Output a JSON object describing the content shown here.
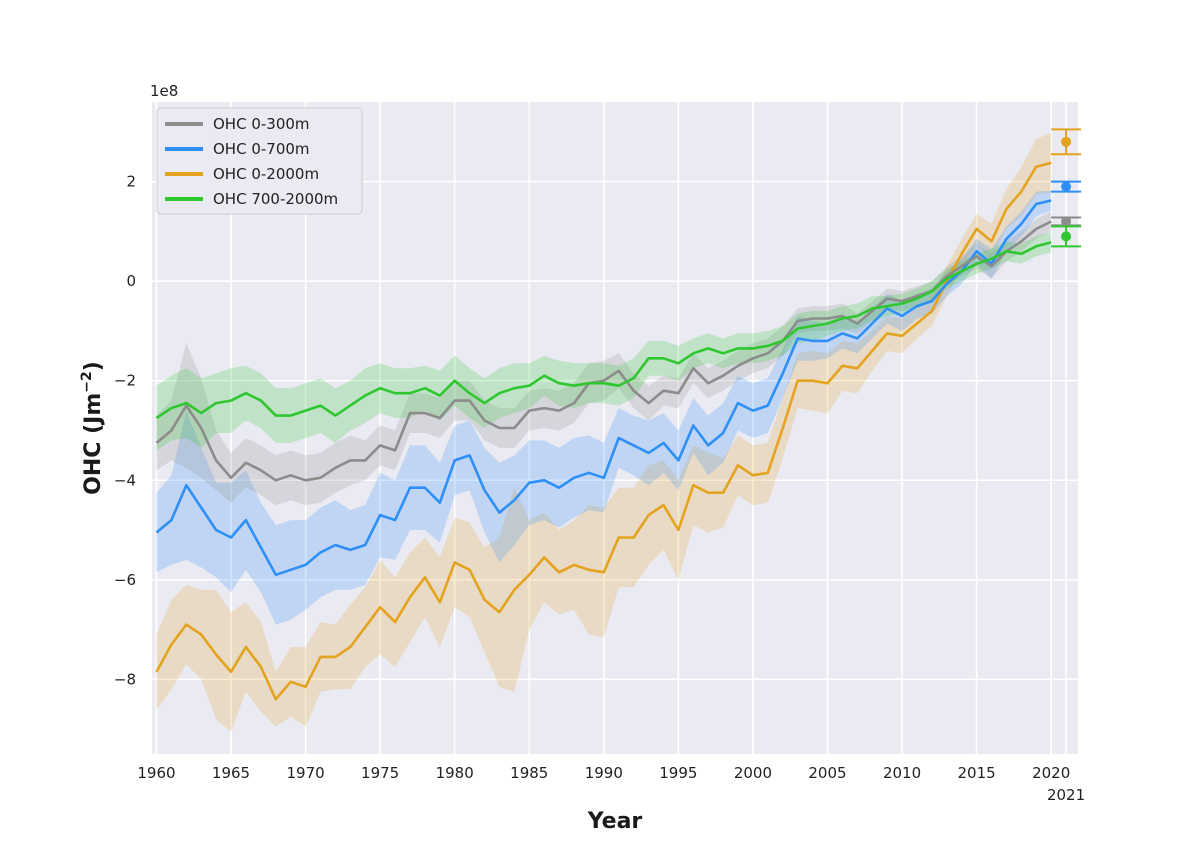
{
  "chart_data": {
    "type": "line",
    "title": "",
    "xlabel": "Year",
    "ylabel_main": "OHC (Jm",
    "ylabel_exp": "−2",
    "ylabel_close": ")",
    "scale_label": "1e8",
    "xlim": [
      1959.7,
      2021.8
    ],
    "ylim": [
      -9.5,
      3.6
    ],
    "x_ticks": [
      1960,
      1965,
      1970,
      1975,
      1980,
      1985,
      1990,
      1995,
      2000,
      2005,
      2010,
      2015,
      2020
    ],
    "x_tick_labels": [
      "1960",
      "1965",
      "1970",
      "1975",
      "1980",
      "1985",
      "1990",
      "1995",
      "2000",
      "2005",
      "2010",
      "2015",
      "2020"
    ],
    "extra_x_tick": {
      "value": 2021,
      "label": "2021"
    },
    "y_ticks": [
      -8,
      -6,
      -4,
      -2,
      0,
      2
    ],
    "y_tick_labels": [
      "−8",
      "−6",
      "−4",
      "−2",
      "0",
      "2"
    ],
    "grid": true,
    "legend_position": "top-left",
    "x": [
      1960,
      1961,
      1962,
      1963,
      1964,
      1965,
      1966,
      1967,
      1968,
      1969,
      1970,
      1971,
      1972,
      1973,
      1974,
      1975,
      1976,
      1977,
      1978,
      1979,
      1980,
      1981,
      1982,
      1983,
      1984,
      1985,
      1986,
      1987,
      1988,
      1989,
      1990,
      1991,
      1992,
      1993,
      1994,
      1995,
      1996,
      1997,
      1998,
      1999,
      2000,
      2001,
      2002,
      2003,
      2004,
      2005,
      2006,
      2007,
      2008,
      2009,
      2010,
      2011,
      2012,
      2013,
      2014,
      2015,
      2016,
      2017,
      2018,
      2019,
      2020
    ],
    "series": [
      {
        "name": "OHC 0-300m",
        "color": "#8c8c8c",
        "values": [
          -3.25,
          -3.0,
          -2.5,
          -2.95,
          -3.6,
          -3.95,
          -3.65,
          -3.8,
          -4.0,
          -3.9,
          -4.0,
          -3.95,
          -3.75,
          -3.6,
          -3.6,
          -3.3,
          -3.4,
          -2.65,
          -2.65,
          -2.75,
          -2.4,
          -2.4,
          -2.8,
          -2.95,
          -2.95,
          -2.6,
          -2.55,
          -2.6,
          -2.45,
          -2.05,
          -2.0,
          -1.8,
          -2.2,
          -2.45,
          -2.2,
          -2.25,
          -1.75,
          -2.05,
          -1.9,
          -1.7,
          -1.55,
          -1.45,
          -1.2,
          -0.8,
          -0.75,
          -0.75,
          -0.7,
          -0.85,
          -0.6,
          -0.35,
          -0.4,
          -0.3,
          -0.2,
          0.1,
          0.3,
          0.5,
          0.3,
          0.6,
          0.8,
          1.05,
          1.2
        ],
        "band": [
          0.55,
          0.6,
          1.25,
          1.0,
          0.6,
          0.5,
          0.5,
          0.5,
          0.5,
          0.5,
          0.5,
          0.5,
          0.5,
          0.5,
          0.4,
          0.4,
          0.4,
          0.4,
          0.4,
          0.4,
          0.4,
          0.4,
          0.4,
          0.4,
          0.4,
          0.4,
          0.4,
          0.4,
          0.4,
          0.4,
          0.4,
          0.35,
          0.35,
          0.35,
          0.3,
          0.3,
          0.3,
          0.3,
          0.3,
          0.3,
          0.3,
          0.3,
          0.3,
          0.25,
          0.25,
          0.25,
          0.25,
          0.2,
          0.2,
          0.2,
          0.2,
          0.2,
          0.2,
          0.2,
          0.2,
          0.25,
          0.25,
          0.2,
          0.2,
          0.2,
          0.2
        ],
        "last_value": 1.2,
        "last_error": 0.08
      },
      {
        "name": "OHC 0-700m",
        "color": "#2d8ff7",
        "values": [
          -5.05,
          -4.8,
          -4.1,
          -4.55,
          -5.0,
          -5.15,
          -4.8,
          -5.35,
          -5.9,
          -5.8,
          -5.7,
          -5.45,
          -5.3,
          -5.4,
          -5.3,
          -4.7,
          -4.8,
          -4.15,
          -4.15,
          -4.45,
          -3.6,
          -3.5,
          -4.2,
          -4.65,
          -4.4,
          -4.05,
          -4.0,
          -4.15,
          -3.95,
          -3.85,
          -3.95,
          -3.15,
          -3.3,
          -3.45,
          -3.25,
          -3.6,
          -2.9,
          -3.3,
          -3.05,
          -2.45,
          -2.6,
          -2.5,
          -1.85,
          -1.15,
          -1.2,
          -1.2,
          -1.05,
          -1.15,
          -0.85,
          -0.55,
          -0.7,
          -0.5,
          -0.4,
          -0.05,
          0.2,
          0.6,
          0.35,
          0.85,
          1.15,
          1.55,
          1.62
        ],
        "band": [
          0.8,
          0.9,
          1.5,
          1.2,
          0.95,
          1.1,
          1.0,
          0.9,
          1.0,
          1.0,
          0.9,
          0.9,
          0.9,
          0.8,
          0.8,
          0.85,
          0.8,
          0.85,
          0.85,
          0.8,
          0.7,
          0.7,
          0.85,
          1.0,
          0.9,
          0.85,
          0.8,
          0.8,
          0.8,
          0.75,
          0.7,
          0.6,
          0.6,
          0.65,
          0.6,
          0.6,
          0.55,
          0.6,
          0.6,
          0.55,
          0.55,
          0.55,
          0.5,
          0.45,
          0.4,
          0.35,
          0.3,
          0.3,
          0.3,
          0.3,
          0.3,
          0.25,
          0.25,
          0.25,
          0.25,
          0.25,
          0.3,
          0.25,
          0.25,
          0.25,
          0.2
        ],
        "last_value": 1.9,
        "last_error": 0.1
      },
      {
        "name": "OHC 0-2000m",
        "color": "#e4a31e",
        "values": [
          -7.85,
          -7.3,
          -6.9,
          -7.1,
          -7.5,
          -7.85,
          -7.35,
          -7.75,
          -8.4,
          -8.05,
          -8.15,
          -7.55,
          -7.55,
          -7.35,
          -6.95,
          -6.55,
          -6.85,
          -6.35,
          -5.95,
          -6.45,
          -5.65,
          -5.8,
          -6.4,
          -6.65,
          -6.2,
          -5.9,
          -5.55,
          -5.85,
          -5.7,
          -5.8,
          -5.85,
          -5.15,
          -5.15,
          -4.7,
          -4.5,
          -5.0,
          -4.1,
          -4.25,
          -4.25,
          -3.7,
          -3.9,
          -3.85,
          -2.95,
          -2.0,
          -2.0,
          -2.05,
          -1.7,
          -1.75,
          -1.4,
          -1.05,
          -1.1,
          -0.85,
          -0.6,
          0.0,
          0.55,
          1.05,
          0.8,
          1.45,
          1.8,
          2.3,
          2.38
        ],
        "band": [
          0.75,
          0.9,
          0.8,
          0.9,
          1.3,
          1.2,
          0.9,
          0.9,
          0.55,
          0.7,
          0.8,
          0.7,
          0.65,
          0.85,
          0.8,
          0.95,
          0.9,
          0.9,
          0.8,
          0.9,
          0.9,
          0.95,
          1.05,
          1.5,
          2.05,
          1.1,
          0.9,
          0.85,
          0.9,
          1.3,
          1.3,
          1.0,
          1.0,
          1.0,
          0.9,
          1.0,
          0.8,
          0.8,
          0.7,
          0.6,
          0.6,
          0.6,
          0.6,
          0.55,
          0.6,
          0.6,
          0.5,
          0.5,
          0.4,
          0.35,
          0.35,
          0.3,
          0.3,
          0.3,
          0.3,
          0.3,
          0.35,
          0.4,
          0.5,
          0.55,
          0.6
        ],
        "last_value": 2.8,
        "last_error": 0.25
      },
      {
        "name": "OHC 700-2000m",
        "color": "#2fc72f",
        "values": [
          -2.75,
          -2.55,
          -2.45,
          -2.65,
          -2.45,
          -2.4,
          -2.25,
          -2.4,
          -2.7,
          -2.7,
          -2.6,
          -2.5,
          -2.7,
          -2.5,
          -2.3,
          -2.15,
          -2.25,
          -2.25,
          -2.15,
          -2.3,
          -2.0,
          -2.25,
          -2.45,
          -2.25,
          -2.15,
          -2.1,
          -1.9,
          -2.05,
          -2.1,
          -2.05,
          -2.05,
          -2.1,
          -1.95,
          -1.55,
          -1.55,
          -1.65,
          -1.45,
          -1.35,
          -1.45,
          -1.35,
          -1.35,
          -1.3,
          -1.2,
          -0.95,
          -0.9,
          -0.85,
          -0.75,
          -0.7,
          -0.55,
          -0.5,
          -0.45,
          -0.35,
          -0.2,
          0.05,
          0.2,
          0.35,
          0.45,
          0.6,
          0.55,
          0.7,
          0.78
        ],
        "band": [
          0.65,
          0.65,
          0.7,
          0.7,
          0.6,
          0.65,
          0.55,
          0.55,
          0.55,
          0.55,
          0.55,
          0.55,
          0.55,
          0.5,
          0.55,
          0.5,
          0.5,
          0.5,
          0.45,
          0.5,
          0.5,
          0.5,
          0.5,
          0.5,
          0.5,
          0.45,
          0.4,
          0.45,
          0.45,
          0.4,
          0.4,
          0.4,
          0.4,
          0.35,
          0.35,
          0.35,
          0.3,
          0.3,
          0.3,
          0.3,
          0.3,
          0.3,
          0.3,
          0.3,
          0.3,
          0.25,
          0.25,
          0.25,
          0.25,
          0.2,
          0.2,
          0.2,
          0.2,
          0.2,
          0.2,
          0.2,
          0.2,
          0.2,
          0.2,
          0.2,
          0.2
        ],
        "last_value": 0.9,
        "last_error": 0.2
      }
    ],
    "extra_points_x": 2021
  }
}
